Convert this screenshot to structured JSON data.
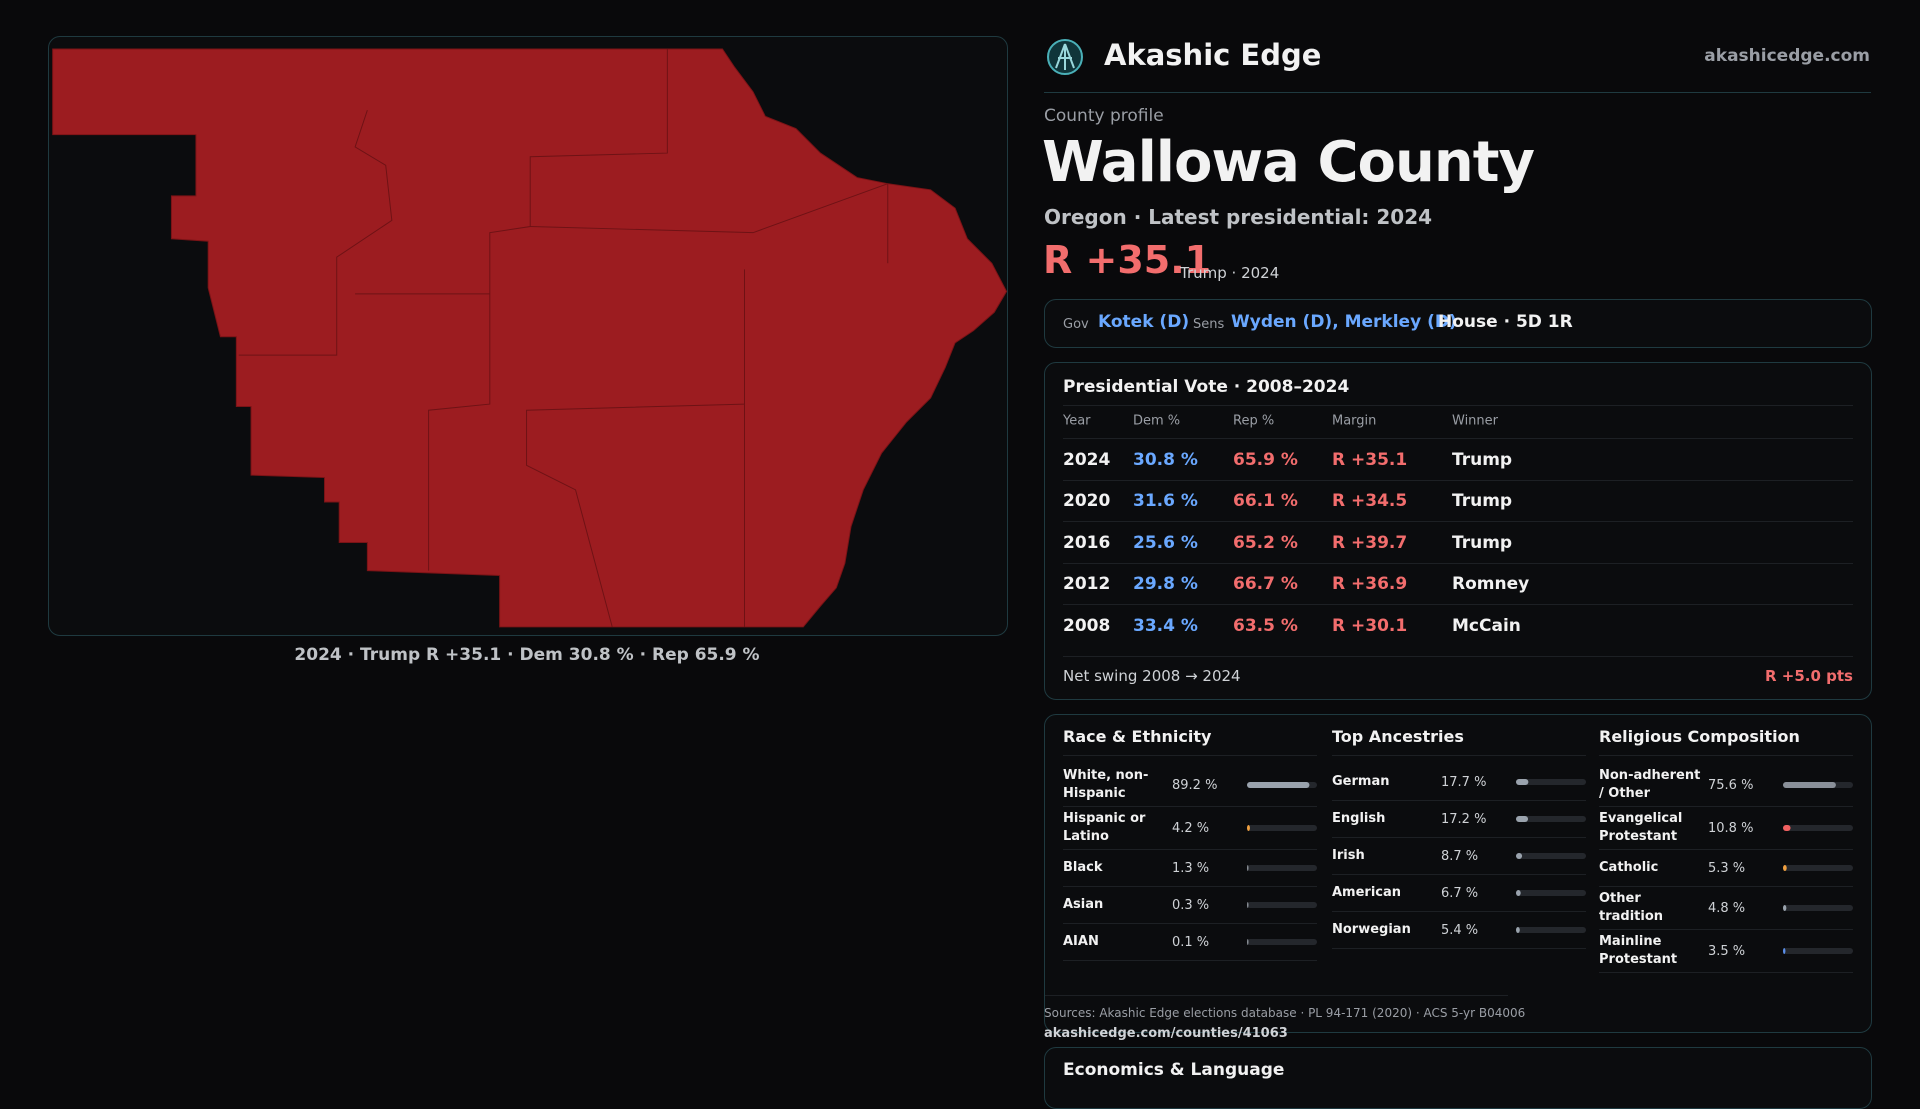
{
  "header": {
    "brand": "Akashic Edge",
    "url": "akashicedge.com"
  },
  "map": {
    "caption": "2024 · Trump R +35.1 · Dem 30.8 % · Rep 65.9 %"
  },
  "profile": {
    "eyebrow": "County profile",
    "name": "Wallowa County",
    "subtitle": "Oregon · Latest presidential: 2024",
    "margin": "R +35.1",
    "margin_note": "Trump · 2024"
  },
  "officials": {
    "gov_label": "Gov",
    "gov": "Kotek (D)",
    "sens_label": "Sens",
    "sens": "Wyden (D), Merkley (D)",
    "house": "House · 5D 1R"
  },
  "presidential": {
    "title": "Presidential Vote · 2008–2024",
    "columns": [
      "Year",
      "Dem %",
      "Rep %",
      "Margin",
      "Winner"
    ],
    "rows": [
      [
        "2024",
        "30.8 %",
        "65.9 %",
        "R +35.1",
        "Trump"
      ],
      [
        "2020",
        "31.6 %",
        "66.1 %",
        "R +34.5",
        "Trump"
      ],
      [
        "2016",
        "25.6 %",
        "65.2 %",
        "R +39.7",
        "Trump"
      ],
      [
        "2012",
        "29.8 %",
        "66.7 %",
        "R +36.9",
        "Romney"
      ],
      [
        "2008",
        "33.4 %",
        "63.5 %",
        "R +30.1",
        "McCain"
      ]
    ],
    "swing_label": "Net swing 2008 → 2024",
    "swing_value": "R +5.0 pts"
  },
  "demographics": [
    {
      "title": "Race & Ethnicity",
      "rows": [
        {
          "label": "White, non-Hispanic",
          "value": {
            "value": 89.2,
            "label": "89.2 %"
          },
          "color": "#9aa3ad"
        },
        {
          "label": "Hispanic or Latino",
          "value": {
            "value": 4.2,
            "label": "4.2 %"
          },
          "color": "#f0a040"
        },
        {
          "label": "Black",
          "value": {
            "value": 1.3,
            "label": "1.3 %"
          },
          "color": "#8a8f96"
        },
        {
          "label": "Asian",
          "value": {
            "value": 0.3,
            "label": "0.3 %"
          },
          "color": "#8a8f96"
        },
        {
          "label": "AIAN",
          "value": {
            "value": 0.1,
            "label": "0.1 %"
          },
          "color": "#8a8f96"
        }
      ]
    },
    {
      "title": "Top Ancestries",
      "rows": [
        {
          "label": "German",
          "value": {
            "value": 17.7,
            "label": "17.7 %"
          },
          "color": "#9aa3ad"
        },
        {
          "label": "English",
          "value": {
            "value": 17.2,
            "label": "17.2 %"
          },
          "color": "#9aa3ad"
        },
        {
          "label": "Irish",
          "value": {
            "value": 8.7,
            "label": "8.7 %"
          },
          "color": "#9aa3ad"
        },
        {
          "label": "American",
          "value": {
            "value": 6.7,
            "label": "6.7 %"
          },
          "color": "#9aa3ad"
        },
        {
          "label": "Norwegian",
          "value": {
            "value": 5.4,
            "label": "5.4 %"
          },
          "color": "#9aa3ad"
        }
      ]
    },
    {
      "title": "Religious Composition",
      "rows": [
        {
          "label": "Non-adherent / Other",
          "value": {
            "value": 75.6,
            "label": "75.6 %"
          },
          "color": "#8a9099"
        },
        {
          "label": "Evangelical Protestant",
          "value": {
            "value": 10.8,
            "label": "10.8 %"
          },
          "color": "#f06060"
        },
        {
          "label": "Catholic",
          "value": {
            "value": 5.3,
            "label": "5.3 %"
          },
          "color": "#f0a040"
        },
        {
          "label": "Other tradition",
          "value": {
            "value": 4.8,
            "label": "4.8 %"
          },
          "color": "#9aa3ad"
        },
        {
          "label": "Mainline Protestant",
          "value": {
            "value": 3.5,
            "label": "3.5 %"
          },
          "color": "#5a8ee8"
        }
      ]
    }
  ],
  "sources": {
    "text": "Sources: Akashic Edge elections database · PL 94-171 (2020) · ACS 5-yr B04006",
    "url": "akashicedge.com/counties/41063"
  },
  "economics": {
    "title": "Economics & Language"
  }
}
